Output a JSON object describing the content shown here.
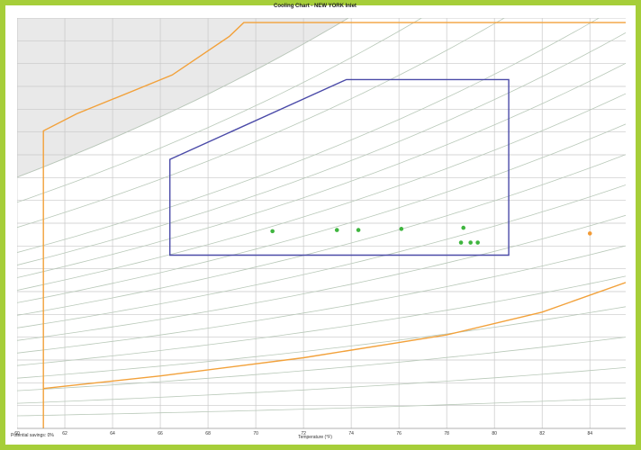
{
  "chart_data": {
    "type": "scatter",
    "title": "Cooling Chart - NEW YORK Inlet",
    "xlabel": "Temperature (°F)",
    "footer_left": "Potential savings: 0%",
    "xlim": [
      60,
      85.5
    ],
    "x_ticks": [
      60,
      62,
      64,
      66,
      68,
      70,
      72,
      74,
      76,
      78,
      80,
      82,
      84
    ],
    "y_scale": "absolute humidity (lb water / lb dry air)",
    "ylim": [
      0.0,
      0.018
    ],
    "grid": true,
    "green_points": [
      {
        "x": 70.7,
        "y": 0.00865
      },
      {
        "x": 73.4,
        "y": 0.0087
      },
      {
        "x": 74.3,
        "y": 0.0087
      },
      {
        "x": 76.1,
        "y": 0.00875
      },
      {
        "x": 78.7,
        "y": 0.0088
      },
      {
        "x": 78.6,
        "y": 0.00815
      },
      {
        "x": 79.0,
        "y": 0.00815
      },
      {
        "x": 79.3,
        "y": 0.00815
      }
    ],
    "orange_points": [
      {
        "x": 84.0,
        "y": 0.00855
      }
    ],
    "envelope_blue": [
      [
        66.4,
        0.0118
      ],
      [
        73.8,
        0.0153
      ],
      [
        80.6,
        0.0153
      ],
      [
        80.6,
        0.0076
      ],
      [
        66.4,
        0.0076
      ]
    ],
    "envelope_orange_upper": [
      [
        61.1,
        0.0
      ],
      [
        61.1,
        0.01305
      ],
      [
        62.5,
        0.0138
      ],
      [
        66.5,
        0.0155
      ],
      [
        68.9,
        0.0172
      ],
      [
        69.5,
        0.0178
      ],
      [
        85.5,
        0.0178
      ]
    ],
    "envelope_orange_lower": [
      [
        61.1,
        0.00175
      ],
      [
        66,
        0.0023
      ],
      [
        72,
        0.0031
      ],
      [
        78,
        0.0041
      ],
      [
        82,
        0.0051
      ],
      [
        85.5,
        0.0064
      ]
    ],
    "rh_curves": [
      5,
      10,
      15,
      20,
      25,
      30,
      35,
      40,
      45,
      50,
      55,
      60,
      65,
      70,
      80,
      90,
      100
    ],
    "colors": {
      "border": "#a6ce39",
      "grid": "#c8c8c8",
      "rh_lines": "#b9c9b9",
      "envelope_blue": "#4a4aa8",
      "envelope_orange": "#f2a13a",
      "point_green": "#3fb53f",
      "point_orange": "#f29a35",
      "saturation_fill": "#e9e9e9"
    }
  }
}
